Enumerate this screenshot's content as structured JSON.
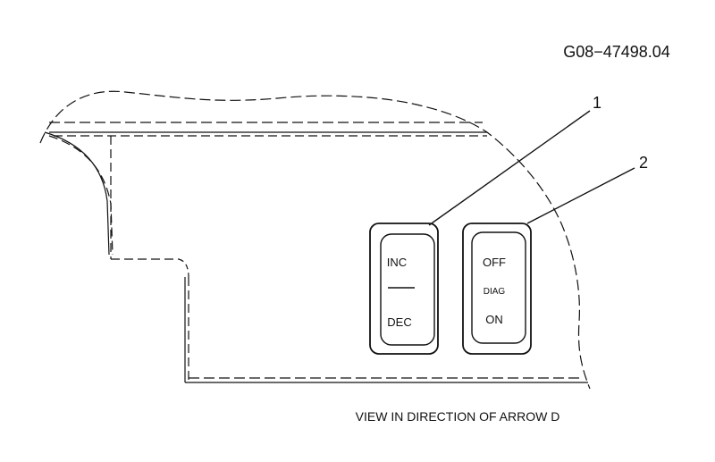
{
  "figure_id": "G08−47498.04",
  "caption": "VIEW IN DIRECTION OF ARROW D",
  "callouts": {
    "one": "1",
    "two": "2"
  },
  "switch_1": {
    "top_label": "INC",
    "bottom_label": "DEC"
  },
  "switch_2": {
    "top_label": "OFF",
    "middle_label": "DIAG",
    "bottom_label": "ON"
  },
  "colors": {
    "line": "#111111",
    "background": "#ffffff"
  }
}
